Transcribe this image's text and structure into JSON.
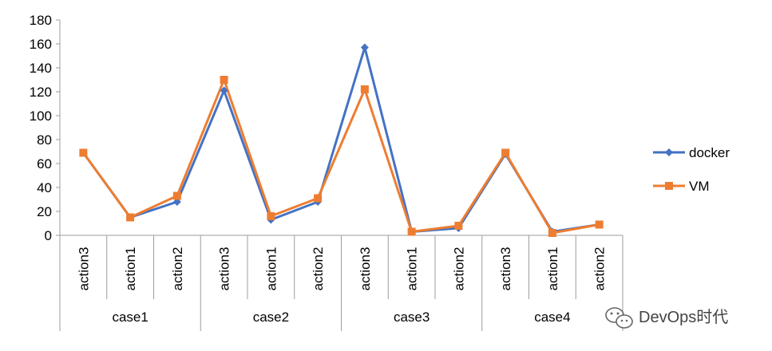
{
  "chart_data": {
    "type": "line",
    "x": [
      {
        "group": "case1",
        "label": "action3"
      },
      {
        "group": "case1",
        "label": "action1"
      },
      {
        "group": "case1",
        "label": "action2"
      },
      {
        "group": "case2",
        "label": "action3"
      },
      {
        "group": "case2",
        "label": "action1"
      },
      {
        "group": "case2",
        "label": "action2"
      },
      {
        "group": "case3",
        "label": "action3"
      },
      {
        "group": "case3",
        "label": "action1"
      },
      {
        "group": "case3",
        "label": "action2"
      },
      {
        "group": "case4",
        "label": "action3"
      },
      {
        "group": "case4",
        "label": "action1"
      },
      {
        "group": "case4",
        "label": "action2"
      }
    ],
    "groups": [
      "case1",
      "case2",
      "case3",
      "case4"
    ],
    "series": [
      {
        "name": "docker",
        "color": "#4472C4",
        "marker": "diamond",
        "values": [
          69,
          15,
          28,
          121,
          13,
          28,
          157,
          3,
          6,
          68,
          3,
          9
        ]
      },
      {
        "name": "VM",
        "color": "#ED7D31",
        "marker": "square",
        "values": [
          69,
          15,
          33,
          130,
          16,
          31,
          122,
          3,
          8,
          69,
          2,
          9
        ]
      }
    ],
    "ylim": [
      0,
      180
    ],
    "yticks": [
      0,
      20,
      40,
      60,
      80,
      100,
      120,
      140,
      160,
      180
    ],
    "grid": false,
    "legend": "right"
  },
  "watermark": {
    "text": "DevOps时代",
    "icon": "wechat-icon"
  }
}
